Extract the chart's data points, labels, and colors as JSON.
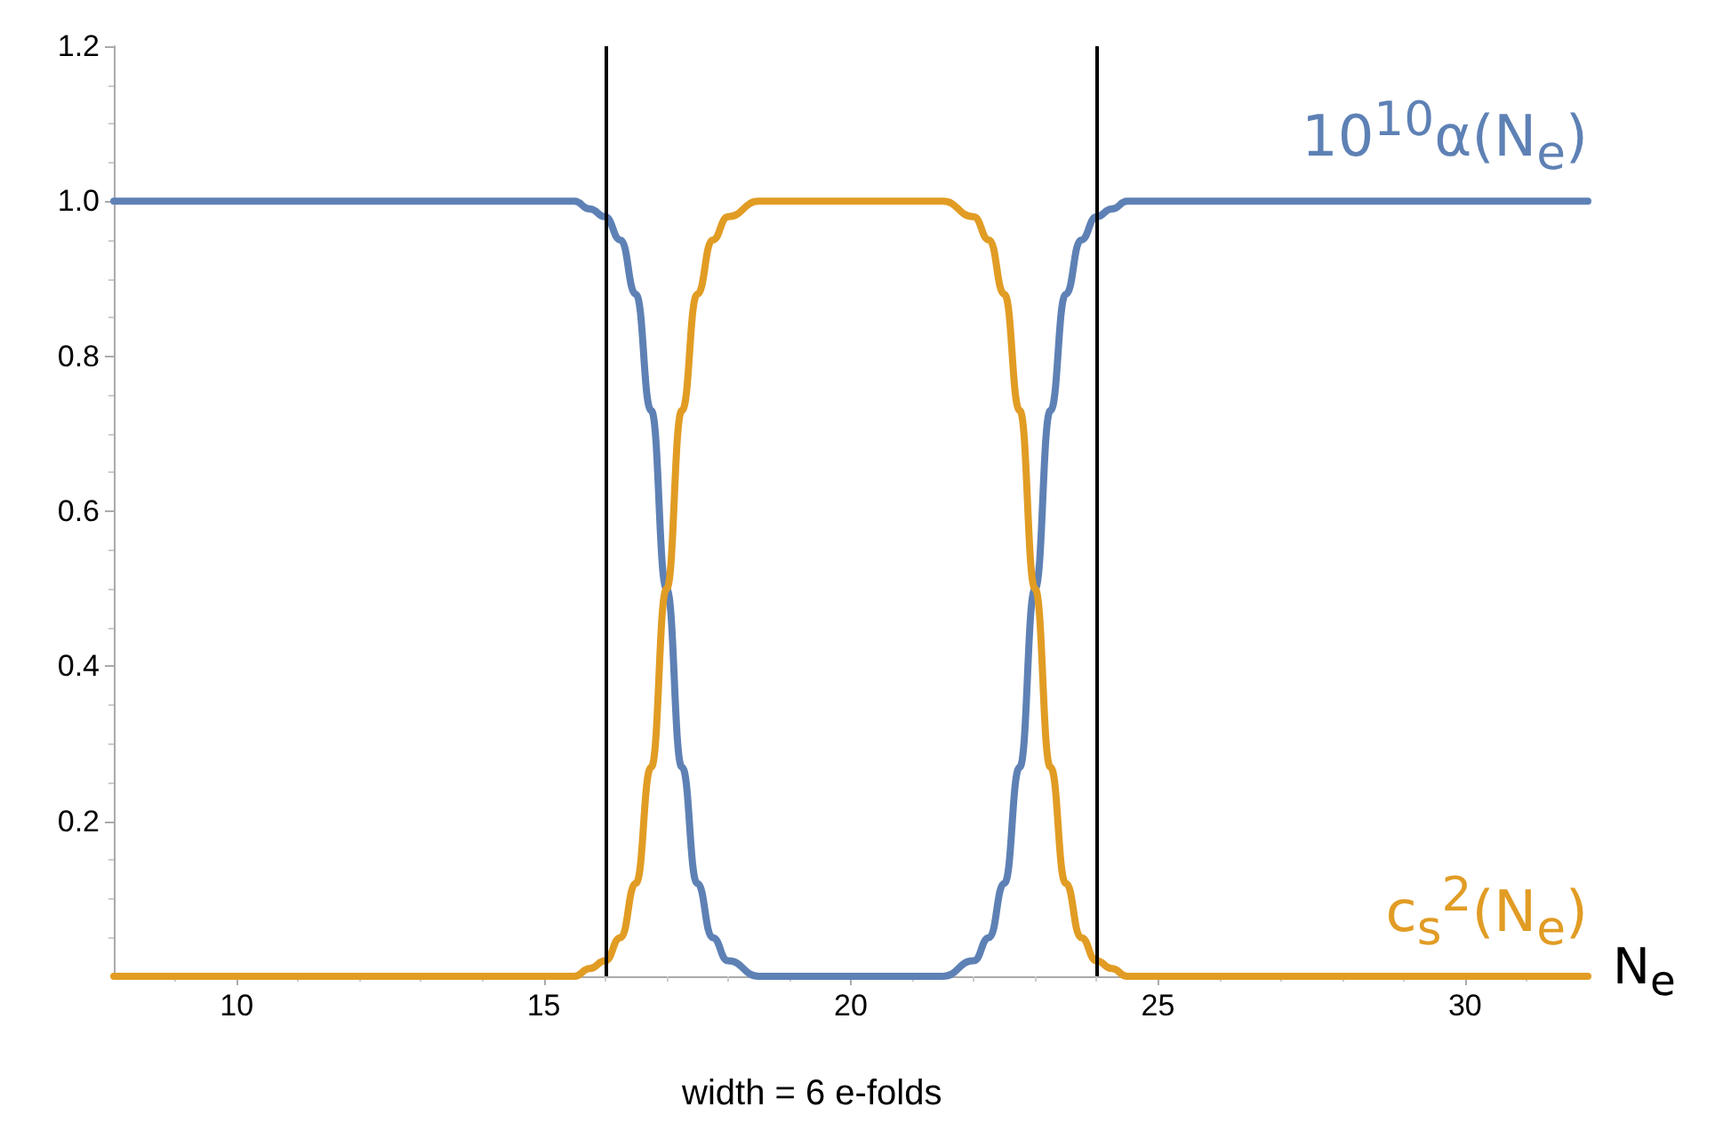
{
  "chart_data": {
    "type": "line",
    "xlabel": "N$_{e}$",
    "annotations": [
      "width = 6 e-folds"
    ],
    "x": [
      8,
      15,
      15.5,
      15.75,
      16,
      16.25,
      16.5,
      16.75,
      17,
      17.25,
      17.5,
      17.75,
      18,
      18.5,
      19,
      21,
      21.5,
      22,
      22.25,
      22.5,
      22.75,
      23,
      23.25,
      23.5,
      23.75,
      24,
      24.25,
      24.5,
      25,
      32
    ],
    "series": [
      {
        "name": "10$^{10}$α(N$_{e}$)",
        "color": "#5e81b5",
        "values": [
          1,
          1,
          1,
          0.99,
          0.98,
          0.95,
          0.88,
          0.73,
          0.5,
          0.27,
          0.12,
          0.05,
          0.02,
          0,
          0,
          0,
          0,
          0.02,
          0.05,
          0.12,
          0.27,
          0.5,
          0.73,
          0.88,
          0.95,
          0.98,
          0.99,
          1,
          1,
          1
        ]
      },
      {
        "name": "c$_{s}$$^{2}$(N$_{e}$)",
        "color": "#e19c24",
        "values": [
          0,
          0,
          0,
          0.01,
          0.02,
          0.05,
          0.12,
          0.27,
          0.5,
          0.73,
          0.88,
          0.95,
          0.98,
          1,
          1,
          1,
          1,
          0.98,
          0.95,
          0.88,
          0.73,
          0.5,
          0.27,
          0.12,
          0.05,
          0.02,
          0.01,
          0,
          0,
          0
        ]
      }
    ],
    "xlim": [
      8,
      32
    ],
    "xticks": [
      10,
      15,
      20,
      25,
      30
    ],
    "ylim": [
      0,
      1.2
    ],
    "yticks": [
      0.2,
      0.4,
      0.6,
      0.8,
      {
        "value": 1,
        "label": "1.0"
      },
      1.2
    ],
    "ref_lines": [
      {
        "axis": "x",
        "value": 16,
        "color": "#000000"
      },
      {
        "axis": "x",
        "value": 24,
        "color": "#000000"
      }
    ],
    "grid": false,
    "line_style": "solid",
    "marker": "none"
  }
}
